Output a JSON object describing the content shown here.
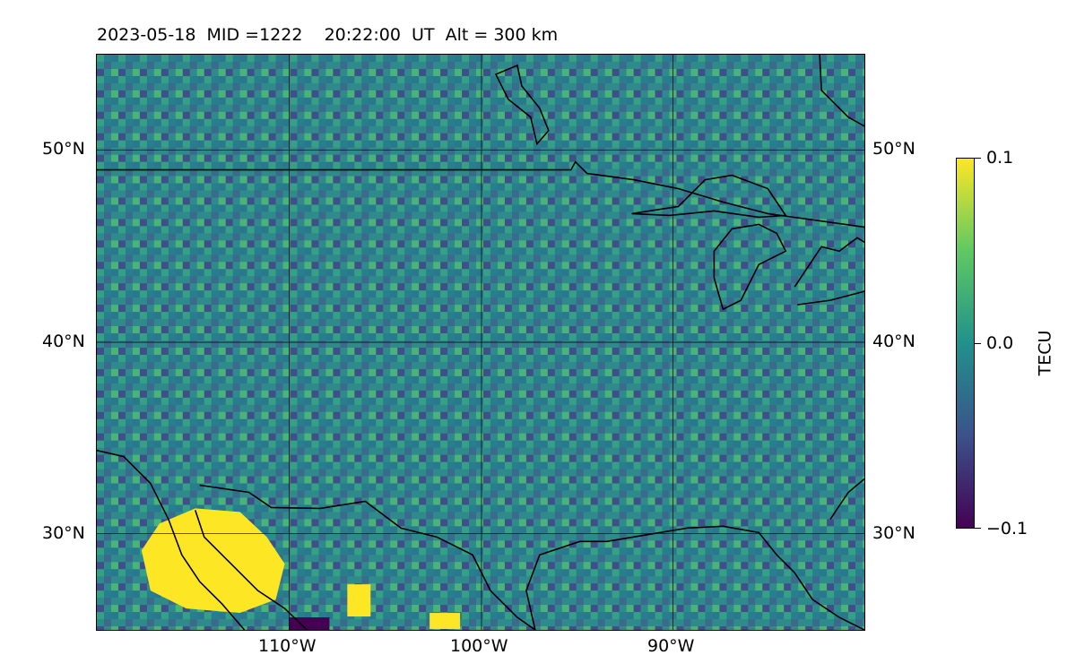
{
  "plot": {
    "title": "2023-05-18  MID =1222    20:22:00  UT  Alt = 300 km"
  },
  "map": {
    "extent_lon": [
      -120,
      -80
    ],
    "extent_lat": [
      25,
      55
    ],
    "background_color": "#2f8a8c",
    "lat_labels": [
      "50°N",
      "40°N",
      "30°N"
    ],
    "lon_labels": [
      "110°W",
      "100°W",
      "90°W"
    ],
    "features": [
      "coastlines",
      "country-borders",
      "great-lakes",
      "gridlines"
    ],
    "highlights": [
      {
        "name": "strong-positive-region",
        "color": "#fde725",
        "location": "northern Mexico, ~113°W 28°N"
      },
      {
        "name": "negative-region",
        "color": "#440154",
        "location": "~109°W 25°N"
      }
    ]
  },
  "colorbar": {
    "label": "TECU",
    "ticks": [
      "0.1",
      "0.0",
      "−0.1"
    ],
    "range": [
      -0.1,
      0.1
    ],
    "colormap": "viridis"
  }
}
